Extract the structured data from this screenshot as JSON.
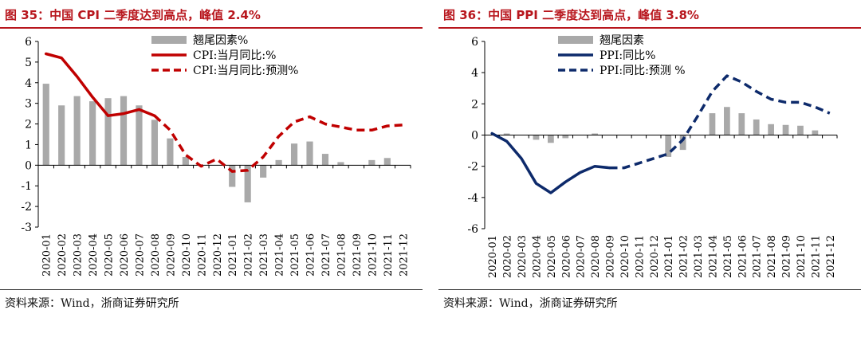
{
  "charts": [
    {
      "title": "图 35：中国 CPI 二季度达到高点，峰值 2.4%",
      "source": "资料来源：Wind，浙商证券研究所",
      "chart_data": {
        "type": "bar+line",
        "categories": [
          "2020-01",
          "2020-02",
          "2020-03",
          "2020-04",
          "2020-05",
          "2020-06",
          "2020-07",
          "2020-08",
          "2020-09",
          "2020-10",
          "2020-11",
          "2020-12",
          "2021-01",
          "2021-02",
          "2021-03",
          "2021-04",
          "2021-05",
          "2021-06",
          "2021-07",
          "2021-08",
          "2021-09",
          "2021-10",
          "2021-11",
          "2021-12"
        ],
        "ylim": [
          -3,
          6
        ],
        "yticks": [
          -3,
          -2,
          -1,
          0,
          1,
          2,
          3,
          4,
          5,
          6
        ],
        "legend": [
          "翘尾因素%",
          "CPI:当月同比:%",
          "CPI:当月同比:预测%"
        ],
        "colors": {
          "bar": "#a9a9a9",
          "line": "#c00000"
        },
        "bars": [
          3.95,
          2.9,
          3.35,
          3.1,
          3.25,
          3.35,
          2.9,
          2.2,
          1.3,
          0.4,
          0.0,
          0.0,
          -1.05,
          -1.8,
          -0.6,
          0.25,
          1.05,
          1.15,
          0.55,
          0.15,
          0.0,
          0.25,
          0.35,
          0.0
        ],
        "line_actual": [
          5.4,
          5.2,
          4.3,
          3.3,
          2.4,
          2.5,
          2.7,
          2.4,
          null,
          null,
          null,
          null,
          null,
          null,
          null,
          null,
          null,
          null,
          null,
          null,
          null,
          null,
          null,
          null
        ],
        "line_forecast": [
          null,
          null,
          null,
          null,
          null,
          null,
          null,
          2.4,
          1.7,
          0.5,
          -0.05,
          0.3,
          -0.3,
          -0.25,
          0.4,
          1.4,
          2.1,
          2.35,
          2.0,
          1.85,
          1.7,
          1.7,
          1.9,
          1.95
        ]
      }
    },
    {
      "title": "图 36：中国 PPI 二季度达到高点，峰值 3.8%",
      "source": "资料来源：Wind，浙商证券研究所",
      "chart_data": {
        "type": "bar+line",
        "categories": [
          "2020-01",
          "2020-02",
          "2020-03",
          "2020-04",
          "2020-05",
          "2020-06",
          "2020-07",
          "2020-08",
          "2020-09",
          "2020-10",
          "2020-11",
          "2020-12",
          "2021-01",
          "2021-02",
          "2021-03",
          "2021-04",
          "2021-05",
          "2021-06",
          "2021-07",
          "2021-08",
          "2021-09",
          "2021-10",
          "2021-11",
          "2021-12"
        ],
        "ylim": [
          -6,
          6
        ],
        "yticks": [
          -6,
          -4,
          -2,
          0,
          2,
          4,
          6
        ],
        "legend": [
          "翘尾因素",
          "PPI:同比%",
          "PPI:同比:预测 %"
        ],
        "colors": {
          "bar": "#a9a9a9",
          "line": "#0d2a6b"
        },
        "bars": [
          0.0,
          0.1,
          0.0,
          -0.3,
          -0.5,
          -0.2,
          0.0,
          0.1,
          0.0,
          0.0,
          0.0,
          0.0,
          -1.4,
          -0.95,
          0.0,
          1.4,
          1.8,
          1.4,
          1.0,
          0.7,
          0.65,
          0.6,
          0.3,
          0.0
        ],
        "line_actual": [
          0.1,
          -0.4,
          -1.5,
          -3.1,
          -3.7,
          -3.0,
          -2.4,
          -2.0,
          -2.1,
          null,
          null,
          null,
          null,
          null,
          null,
          null,
          null,
          null,
          null,
          null,
          null,
          null,
          null,
          null
        ],
        "line_forecast": [
          null,
          null,
          null,
          null,
          null,
          null,
          null,
          null,
          -2.1,
          -2.1,
          -1.8,
          -1.5,
          -1.2,
          -0.3,
          1.2,
          2.8,
          3.8,
          3.4,
          2.8,
          2.3,
          2.1,
          2.1,
          1.8,
          1.4
        ]
      }
    }
  ]
}
